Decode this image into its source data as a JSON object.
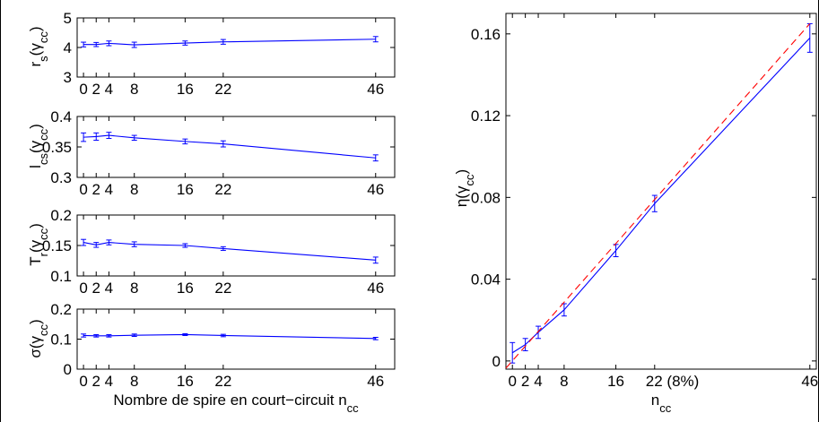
{
  "chart_data": [
    {
      "type": "line",
      "panel": "rs",
      "x": [
        0,
        2,
        4,
        8,
        16,
        22,
        46
      ],
      "xticks": [
        0,
        2,
        4,
        8,
        16,
        22,
        46
      ],
      "xtick_labels": [
        "0",
        "2",
        "4",
        "8",
        "16",
        "22",
        "46"
      ],
      "xlim": [
        -1,
        49
      ],
      "ylim": [
        3,
        5
      ],
      "yticks": [
        3,
        4,
        5
      ],
      "ytick_labels": [
        "3",
        "4",
        "5"
      ],
      "ylabel_main": "r",
      "ylabel_sub": "s",
      "ylabel_open": "(γ",
      "ylabel_sub2": "cc",
      "ylabel_close": ")",
      "series": [
        {
          "values": [
            4.1,
            4.1,
            4.14,
            4.09,
            4.15,
            4.19,
            4.28
          ],
          "err": [
            0.08,
            0.07,
            0.08,
            0.09,
            0.07,
            0.08,
            0.09
          ],
          "color": "#0000ff",
          "style": "solid"
        }
      ]
    },
    {
      "type": "line",
      "panel": "lcs",
      "x": [
        0,
        2,
        4,
        8,
        16,
        22,
        46
      ],
      "xticks": [
        0,
        2,
        4,
        8,
        16,
        22,
        46
      ],
      "xtick_labels": [
        "0",
        "2",
        "4",
        "8",
        "16",
        "22",
        "46"
      ],
      "xlim": [
        -1,
        49
      ],
      "ylim": [
        0.3,
        0.4
      ],
      "yticks": [
        0.3,
        0.35,
        0.4
      ],
      "ytick_labels": [
        "0.3",
        "0.35",
        "0.4"
      ],
      "ylabel_main": "l",
      "ylabel_sub": "cs",
      "ylabel_open": "(γ",
      "ylabel_sub2": "cc",
      "ylabel_close": ")",
      "series": [
        {
          "values": [
            0.366,
            0.367,
            0.369,
            0.365,
            0.359,
            0.355,
            0.332
          ],
          "err": [
            0.007,
            0.006,
            0.005,
            0.004,
            0.004,
            0.005,
            0.005
          ],
          "color": "#0000ff",
          "style": "solid"
        }
      ]
    },
    {
      "type": "line",
      "panel": "tr",
      "x": [
        0,
        2,
        4,
        8,
        16,
        22,
        46
      ],
      "xticks": [
        0,
        2,
        4,
        8,
        16,
        22,
        46
      ],
      "xtick_labels": [
        "0",
        "2",
        "4",
        "8",
        "16",
        "22",
        "46"
      ],
      "xlim": [
        -1,
        49
      ],
      "ylim": [
        0.1,
        0.2
      ],
      "yticks": [
        0.1,
        0.15,
        0.2
      ],
      "ytick_labels": [
        "0.1",
        "0.15",
        "0.2"
      ],
      "ylabel_main": "T",
      "ylabel_sub": "r",
      "ylabel_open": "(γ",
      "ylabel_sub2": "cc",
      "ylabel_close": ")",
      "series": [
        {
          "values": [
            0.155,
            0.151,
            0.155,
            0.152,
            0.15,
            0.145,
            0.126
          ],
          "err": [
            0.005,
            0.004,
            0.004,
            0.004,
            0.003,
            0.003,
            0.005
          ],
          "color": "#0000ff",
          "style": "solid"
        }
      ]
    },
    {
      "type": "line",
      "panel": "sigma",
      "x": [
        0,
        2,
        4,
        8,
        16,
        22,
        46
      ],
      "xticks": [
        0,
        2,
        4,
        8,
        16,
        22,
        46
      ],
      "xtick_labels": [
        "0",
        "2",
        "4",
        "8",
        "16",
        "22",
        "46"
      ],
      "xlim": [
        -1,
        49
      ],
      "ylim": [
        0,
        0.2
      ],
      "yticks": [
        0,
        0.1,
        0.2
      ],
      "ytick_labels": [
        "0",
        "0.1",
        "0.2"
      ],
      "ylabel_main": "σ",
      "ylabel_sub": "",
      "ylabel_open": "(γ",
      "ylabel_sub2": "cc",
      "ylabel_close": ")",
      "xlabel_main": "Nombre de spire en court−circuit n",
      "xlabel_sub": "cc",
      "series": [
        {
          "values": [
            0.112,
            0.111,
            0.111,
            0.113,
            0.115,
            0.112,
            0.102
          ],
          "err": [
            0.005,
            0.004,
            0.004,
            0.004,
            0.003,
            0.004,
            0.004
          ],
          "color": "#0000ff",
          "style": "solid"
        }
      ]
    },
    {
      "type": "line",
      "panel": "eta",
      "x": [
        0,
        2,
        4,
        8,
        16,
        22,
        46
      ],
      "xticks": [
        0,
        2,
        4,
        8,
        16,
        22,
        46
      ],
      "xtick_labels": [
        "0",
        "2",
        "4",
        "8",
        "16",
        "22 (8%)",
        "46"
      ],
      "xlim": [
        -1,
        47
      ],
      "ylim": [
        -0.004,
        0.17
      ],
      "yticks": [
        0,
        0.04,
        0.08,
        0.12,
        0.16
      ],
      "ytick_labels": [
        "0",
        "0.04",
        "0.08",
        "0.12",
        "0.16"
      ],
      "ylabel_main": "η",
      "ylabel_sub": "",
      "ylabel_open": "(γ",
      "ylabel_sub2": "cc",
      "ylabel_close": ")",
      "xlabel_main": "n",
      "xlabel_sub": "cc",
      "series": [
        {
          "values": [
            0.004,
            0.008,
            0.014,
            0.025,
            0.054,
            0.077,
            0.158
          ],
          "err": [
            0.005,
            0.003,
            0.003,
            0.003,
            0.003,
            0.004,
            0.007
          ],
          "color": "#0000ff",
          "style": "solid"
        },
        {
          "x": [
            -1,
            46
          ],
          "values": [
            -0.0035,
            0.165
          ],
          "color": "#ff0000",
          "style": "dashed"
        }
      ]
    }
  ]
}
